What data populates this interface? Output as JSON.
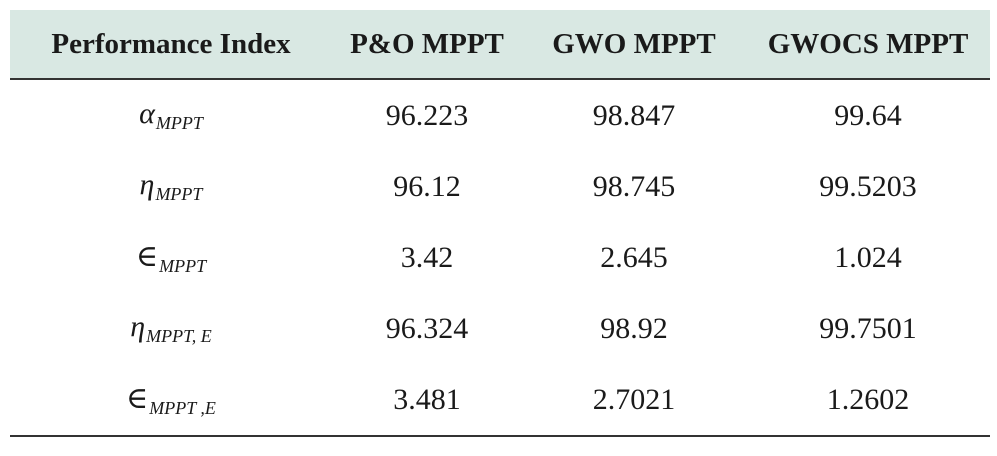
{
  "table": {
    "headers": [
      "Performance Index",
      "P&O MPPT",
      "GWO MPPT",
      "GWOCS MPPT"
    ],
    "rows": [
      {
        "symbol": "α",
        "subscript": "MPPT",
        "values": [
          "96.223",
          "98.847",
          "99.64"
        ]
      },
      {
        "symbol": "η",
        "subscript": "MPPT",
        "values": [
          "96.12",
          "98.745",
          "99.5203"
        ]
      },
      {
        "symbol": "∈",
        "subscript": "MPPT",
        "values": [
          "3.42",
          "2.645",
          "1.024"
        ]
      },
      {
        "symbol": "η",
        "subscript": "MPPT, E",
        "values": [
          "96.324",
          "98.92",
          "99.7501"
        ]
      },
      {
        "symbol": "∈",
        "subscript": "MPPT ,E",
        "values": [
          "3.481",
          "2.7021",
          "1.2602"
        ]
      }
    ]
  }
}
